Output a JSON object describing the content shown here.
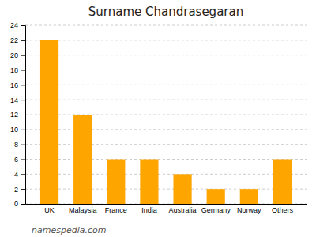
{
  "chart_data": {
    "type": "bar",
    "title": "Surname Chandrasegaran",
    "categories": [
      "UK",
      "Malaysia",
      "France",
      "India",
      "Australia",
      "Germany",
      "Norway",
      "Others"
    ],
    "values": [
      22,
      12,
      6,
      6,
      4,
      2,
      2,
      6
    ],
    "color": "#FFA500",
    "ylim": [
      0,
      24
    ],
    "yticks": [
      0,
      2,
      4,
      6,
      8,
      10,
      12,
      14,
      16,
      18,
      20,
      22,
      24
    ],
    "grid": true,
    "annotation": "namespedia.com"
  }
}
